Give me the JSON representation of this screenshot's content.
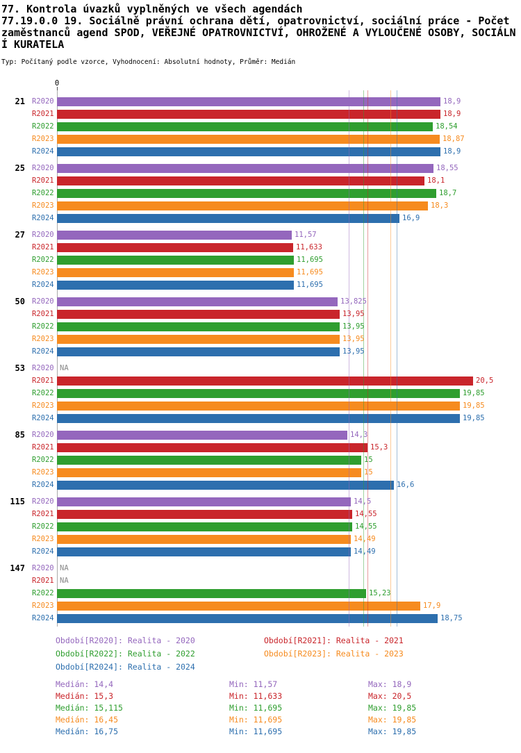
{
  "header": {
    "line1": "77. Kontrola úvazků vyplněných ve všech agendách",
    "line2": "77.19.0.0 19. Sociálně právní ochrana dětí, opatrovnictví, sociální práce - Počet zaměstnanců agend SPOD, VEŘEJNÉ OPATROVNICTVÍ, OHROŽENÉ A VYLOUČENÉ OSOBY, SOCIÁLNÍ KURATELA",
    "line3": "Typ: Počítaný podle vzorce, Vyhodnocení: Absolutní hodnoty, Průměr: Medián"
  },
  "axis": {
    "zero_label": "0"
  },
  "colors": {
    "r2020": "#9467bd",
    "r2021": "#c9252b",
    "r2022": "#2f9e2f",
    "r2023": "#f68b1f",
    "r2024": "#2d6fae",
    "na_text": "#888888",
    "axis": "#aaaaaa"
  },
  "chart_data": {
    "type": "bar",
    "orientation": "horizontal",
    "xlim": [
      0,
      22.5
    ],
    "na_label": "NA",
    "categories": [
      "21",
      "25",
      "27",
      "50",
      "53",
      "85",
      "115",
      "147"
    ],
    "row_labels": [
      "R2020",
      "R2021",
      "R2022",
      "R2023",
      "R2024"
    ],
    "series": [
      {
        "name": "Realita - 2020",
        "row_label": "R2020",
        "color": "#9467bd",
        "median": 14.4,
        "values": [
          18.9,
          18.55,
          11.57,
          13.825,
          null,
          14.3,
          14.5,
          null
        ],
        "value_labels": [
          "18,9",
          "18,55",
          "11,57",
          "13,825",
          "NA",
          "14,3",
          "14,5",
          "NA"
        ]
      },
      {
        "name": "Realita - 2021",
        "row_label": "R2021",
        "color": "#c9252b",
        "median": 15.3,
        "values": [
          18.9,
          18.1,
          11.633,
          13.95,
          20.5,
          15.3,
          14.55,
          null
        ],
        "value_labels": [
          "18,9",
          "18,1",
          "11,633",
          "13,95",
          "20,5",
          "15,3",
          "14,55",
          "NA"
        ]
      },
      {
        "name": "Realita - 2022",
        "row_label": "R2022",
        "color": "#2f9e2f",
        "median": 15.115,
        "values": [
          18.54,
          18.7,
          11.695,
          13.95,
          19.85,
          15,
          14.55,
          15.23
        ],
        "value_labels": [
          "18,54",
          "18,7",
          "11,695",
          "13,95",
          "19,85",
          "15",
          "14,55",
          "15,23"
        ]
      },
      {
        "name": "Realita - 2023",
        "row_label": "R2023",
        "color": "#f68b1f",
        "median": 16.45,
        "values": [
          18.87,
          18.3,
          11.695,
          13.95,
          19.85,
          15,
          14.49,
          17.9
        ],
        "value_labels": [
          "18,87",
          "18,3",
          "11,695",
          "13,95",
          "19,85",
          "15",
          "14,49",
          "17,9"
        ]
      },
      {
        "name": "Realita - 2024",
        "row_label": "R2024",
        "color": "#2d6fae",
        "median": 16.75,
        "values": [
          18.9,
          16.9,
          11.695,
          13.95,
          19.85,
          16.6,
          14.49,
          18.75
        ],
        "value_labels": [
          "18,9",
          "16,9",
          "11,695",
          "13,95",
          "19,85",
          "16,6",
          "14,49",
          "18,75"
        ]
      }
    ]
  },
  "legend": {
    "items": [
      {
        "label": "Období[R2020]: Realita - 2020",
        "color": "#9467bd"
      },
      {
        "label": "Období[R2021]: Realita - 2021",
        "color": "#c9252b"
      },
      {
        "label": "Období[R2022]: Realita - 2022",
        "color": "#2f9e2f"
      },
      {
        "label": "Období[R2023]: Realita - 2023",
        "color": "#f68b1f"
      },
      {
        "label": "Období[R2024]: Realita - 2024",
        "color": "#2d6fae"
      }
    ]
  },
  "stats": {
    "rows": [
      {
        "median": "Medián: 14,4",
        "min": "Min: 11,57",
        "max": "Max: 18,9",
        "color": "#9467bd"
      },
      {
        "median": "Medián: 15,3",
        "min": "Min: 11,633",
        "max": "Max: 20,5",
        "color": "#c9252b"
      },
      {
        "median": "Medián: 15,115",
        "min": "Min: 11,695",
        "max": "Max: 19,85",
        "color": "#2f9e2f"
      },
      {
        "median": "Medián: 16,45",
        "min": "Min: 11,695",
        "max": "Max: 19,85",
        "color": "#f68b1f"
      },
      {
        "median": "Medián: 16,75",
        "min": "Min: 11,695",
        "max": "Max: 19,85",
        "color": "#2d6fae"
      }
    ]
  }
}
